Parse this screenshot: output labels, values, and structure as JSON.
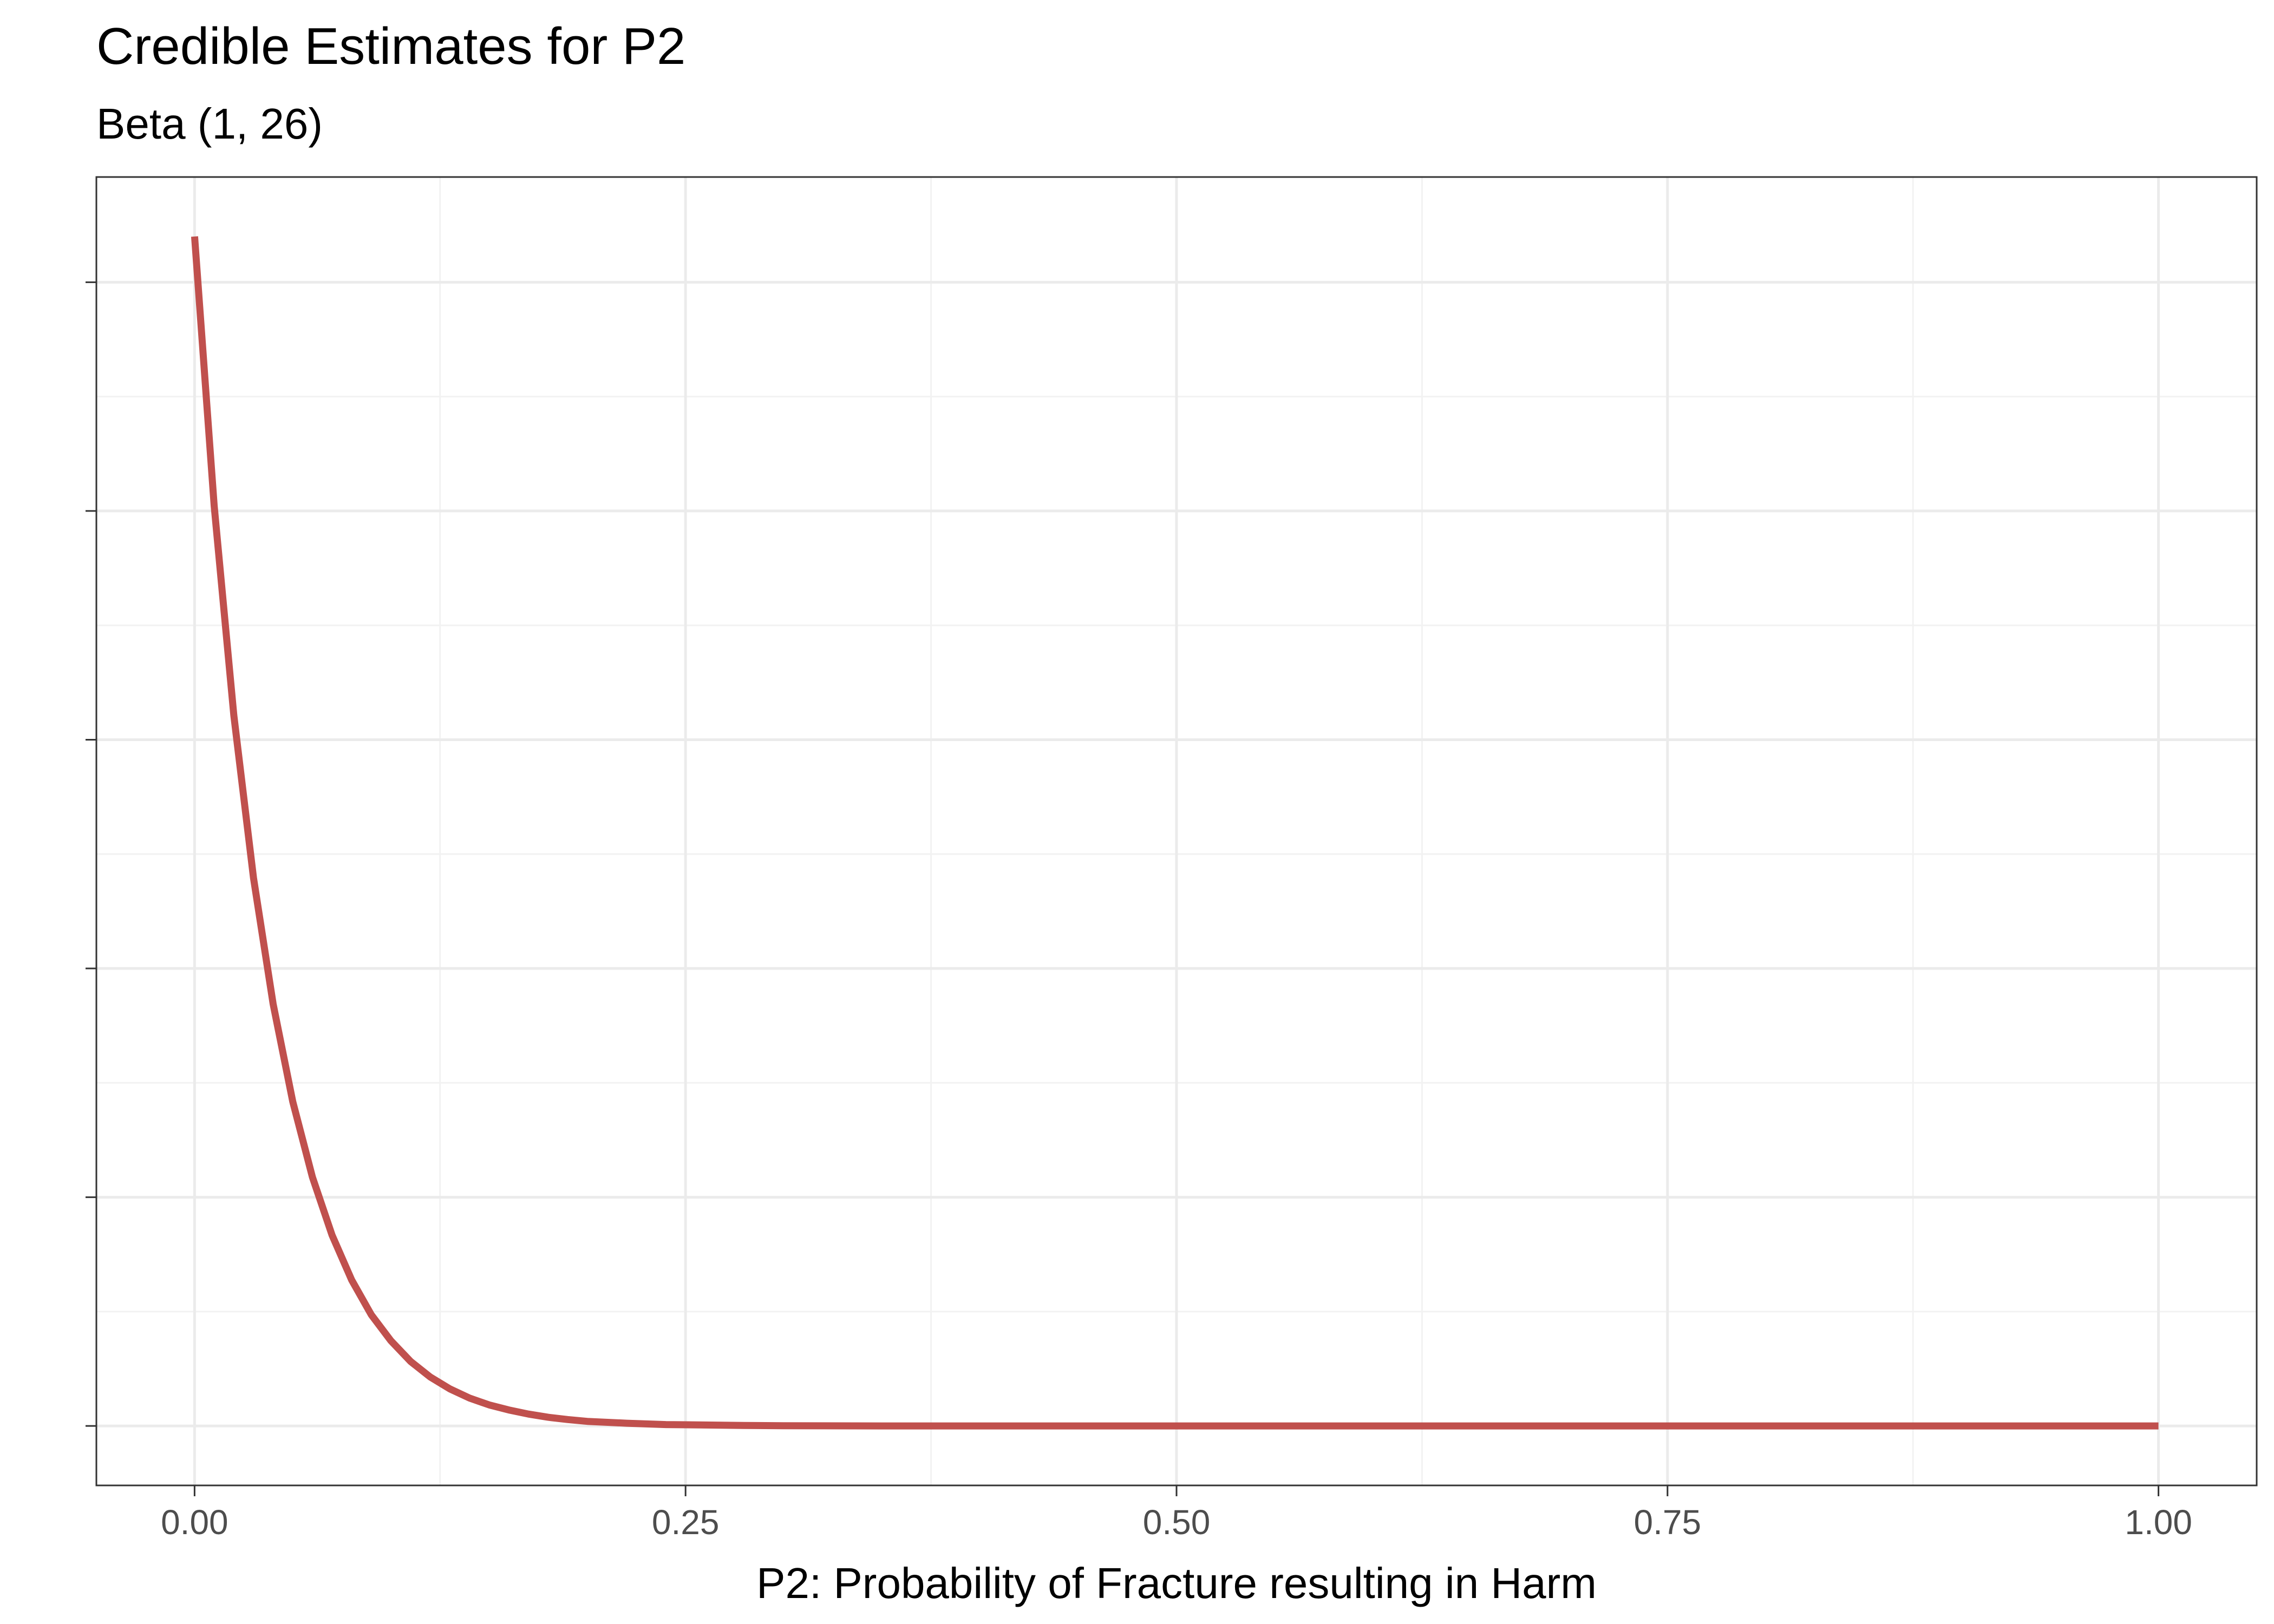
{
  "chart_data": {
    "type": "line",
    "title": "Credible Estimates for P2",
    "subtitle": "Beta (1, 26)",
    "xlabel": "P2: Probability of Fracture resulting in Harm",
    "ylabel": "",
    "x_ticks": [
      0.0,
      0.25,
      0.5,
      0.75,
      1.0
    ],
    "x_tick_labels": [
      "0.00",
      "0.25",
      "0.50",
      "0.75",
      "1.00"
    ],
    "xlim": [
      -0.05,
      1.05
    ],
    "ylim": [
      -1.3,
      27.3
    ],
    "y_ticks_major": [
      0,
      5,
      10,
      15,
      20,
      25
    ],
    "y_tick_labels_shown": false,
    "grid": true,
    "legend": "none",
    "distribution": {
      "family": "Beta",
      "alpha": 1,
      "beta": 26
    },
    "series": [
      {
        "color": "#c0504d",
        "x": [
          0.0,
          0.01,
          0.02,
          0.03,
          0.04,
          0.05,
          0.06,
          0.07,
          0.08,
          0.09,
          0.1,
          0.11,
          0.12,
          0.13,
          0.14,
          0.15,
          0.16,
          0.17,
          0.18,
          0.19,
          0.2,
          0.22,
          0.24,
          0.26,
          0.28,
          0.3,
          0.35,
          0.4,
          0.5,
          0.6,
          0.7,
          0.8,
          0.9,
          1.0
        ],
        "y": [
          26.0,
          20.11,
          15.53,
          11.98,
          9.22,
          7.09,
          5.44,
          4.17,
          3.19,
          2.43,
          1.86,
          1.41,
          1.07,
          0.81,
          0.61,
          0.46,
          0.35,
          0.26,
          0.19,
          0.14,
          0.1,
          0.06,
          0.03,
          0.02,
          0.01,
          0.005,
          0.001,
          0.0,
          0.0,
          0.0,
          0.0,
          0.0,
          0.0,
          0.0
        ]
      }
    ]
  },
  "colors": {
    "line": "#c0504d",
    "grid_major": "#ebebeb",
    "grid_minor": "#f2f2f2",
    "panel_border": "#333333",
    "tick_label": "#4d4d4d"
  }
}
